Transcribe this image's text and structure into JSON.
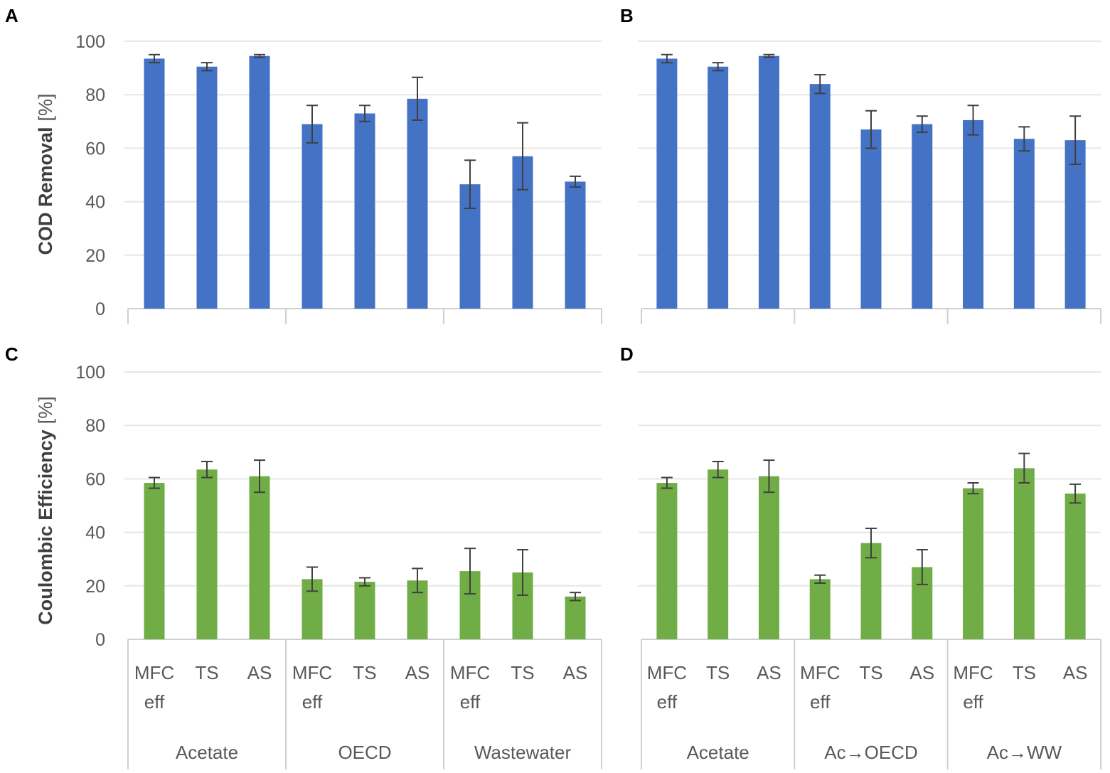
{
  "figure": {
    "colors": {
      "cod": "#4472c4",
      "ce": "#70ad47",
      "error": "#404040",
      "grid": "#e6e6e6"
    },
    "panels": {
      "A": {
        "letter": "A"
      },
      "B": {
        "letter": "B"
      },
      "C": {
        "letter": "C"
      },
      "D": {
        "letter": "D"
      }
    },
    "y_labels": {
      "top": {
        "bold": "COD Removal",
        "unit": "[%]"
      },
      "bottom": {
        "bold": "Coulombic Efficiency",
        "unit": "[%]"
      }
    },
    "y_ticks": [
      "0",
      "20",
      "40",
      "60",
      "80",
      "100"
    ],
    "category_labels": [
      [
        "MFC",
        "eff"
      ],
      [
        "TS"
      ],
      [
        "AS"
      ],
      [
        "MFC",
        "eff"
      ],
      [
        "TS"
      ],
      [
        "AS"
      ],
      [
        "MFC",
        "eff"
      ],
      [
        "TS"
      ],
      [
        "AS"
      ]
    ],
    "groups_left": [
      "Acetate",
      "OECD",
      "Wastewater"
    ],
    "groups_right": [
      "Acetate",
      "Ac→OECD",
      "Ac→WW"
    ]
  },
  "chart_data": [
    {
      "panel": "A",
      "type": "bar",
      "ylabel": "COD Removal [%]",
      "ylim": [
        0,
        100
      ],
      "categories": [
        "MFC eff",
        "TS",
        "AS",
        "MFC eff",
        "TS",
        "AS",
        "MFC eff",
        "TS",
        "AS"
      ],
      "groups": [
        "Acetate",
        "OECD",
        "Wastewater"
      ],
      "values": [
        93.5,
        90.5,
        94.5,
        69,
        73,
        78.5,
        46.5,
        57,
        47.5
      ],
      "errors": [
        1.5,
        1.5,
        0.5,
        7,
        3,
        8,
        9,
        12.5,
        2
      ]
    },
    {
      "panel": "B",
      "type": "bar",
      "ylabel": "COD Removal [%]",
      "ylim": [
        0,
        100
      ],
      "categories": [
        "MFC eff",
        "TS",
        "AS",
        "MFC eff",
        "TS",
        "AS",
        "MFC eff",
        "TS",
        "AS"
      ],
      "groups": [
        "Acetate",
        "Ac→OECD",
        "Ac→WW"
      ],
      "values": [
        93.5,
        90.5,
        94.5,
        84,
        67,
        69,
        70.5,
        63.5,
        63
      ],
      "errors": [
        1.5,
        1.5,
        0.5,
        3.5,
        7,
        3,
        5.5,
        4.5,
        9
      ]
    },
    {
      "panel": "C",
      "type": "bar",
      "ylabel": "Coulombic Efficiency [%]",
      "ylim": [
        0,
        100
      ],
      "categories": [
        "MFC eff",
        "TS",
        "AS",
        "MFC eff",
        "TS",
        "AS",
        "MFC eff",
        "TS",
        "AS"
      ],
      "groups": [
        "Acetate",
        "OECD",
        "Wastewater"
      ],
      "values": [
        58.5,
        63.5,
        61,
        22.5,
        21.5,
        22,
        25.5,
        25,
        16
      ],
      "errors": [
        2,
        3,
        6,
        4.5,
        1.5,
        4.5,
        8.5,
        8.5,
        1.5
      ]
    },
    {
      "panel": "D",
      "type": "bar",
      "ylabel": "Coulombic Efficiency [%]",
      "ylim": [
        0,
        100
      ],
      "categories": [
        "MFC eff",
        "TS",
        "AS",
        "MFC eff",
        "TS",
        "AS",
        "MFC eff",
        "TS",
        "AS"
      ],
      "groups": [
        "Acetate",
        "Ac→OECD",
        "Ac→WW"
      ],
      "values": [
        58.5,
        63.5,
        61,
        22.5,
        36,
        27,
        56.5,
        64,
        54.5
      ],
      "errors": [
        2,
        3,
        6,
        1.5,
        5.5,
        6.5,
        2,
        5.5,
        3.5
      ]
    }
  ]
}
